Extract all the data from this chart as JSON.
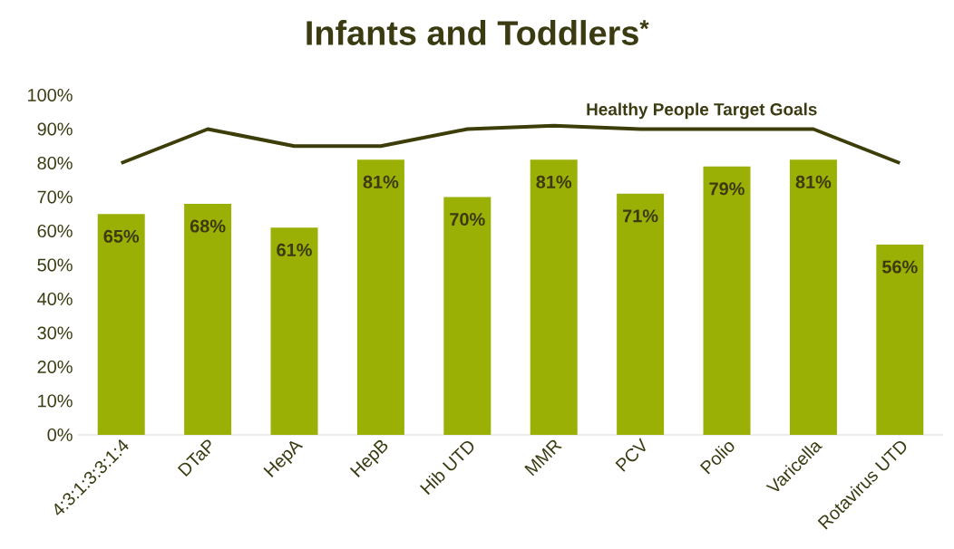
{
  "chart_data": {
    "type": "bar",
    "title": "Infants and Toddlers$^{*}$",
    "categories": [
      "4:3:1:3:3:1:4",
      "DTaP",
      "HepA",
      "HepB",
      "Hib UTD",
      "MMR",
      "PCV",
      "Polio",
      "Varicella",
      "Rotavirus UTD"
    ],
    "series": [
      {
        "color": "#9bb005",
        "values": [
          65,
          68,
          61,
          81,
          70,
          81,
          71,
          79,
          81,
          56
        ],
        "value_labels": [
          "65%",
          "68%",
          "61%",
          "81%",
          "70%",
          "81%",
          "71%",
          "79%",
          "81%",
          "56%"
        ]
      },
      {
        "type": "line",
        "name": "Healthy People Target Goals",
        "color": "#3d3d0a",
        "values": [
          80,
          90,
          85,
          85,
          90,
          91,
          90,
          90,
          90,
          80
        ]
      }
    ],
    "ylim": [
      0,
      100
    ],
    "yticks": [
      {
        "value": 0,
        "label": "0%"
      },
      {
        "value": 10,
        "label": "10%"
      },
      {
        "value": 20,
        "label": "20%"
      },
      {
        "value": 30,
        "label": "30%"
      },
      {
        "value": 40,
        "label": "40%"
      },
      {
        "value": 50,
        "label": "50%"
      },
      {
        "value": 60,
        "label": "60%"
      },
      {
        "value": 70,
        "label": "70%"
      },
      {
        "value": 80,
        "label": "80%"
      },
      {
        "value": 90,
        "label": "90%"
      },
      {
        "value": 100,
        "label": "100%"
      }
    ],
    "grid": false,
    "marker": "none",
    "line_style": "solid"
  }
}
